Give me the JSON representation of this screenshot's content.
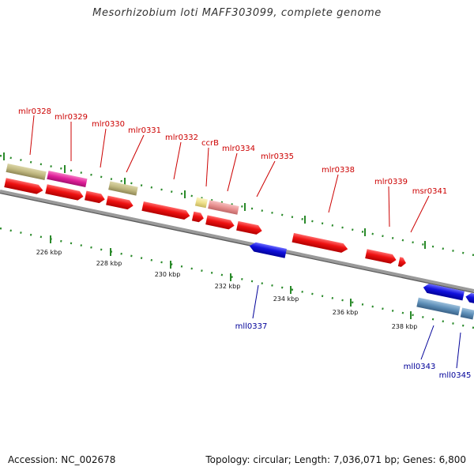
{
  "title": "Mesorhizobium loti MAFF303099, complete genome",
  "accession_label": "Accession: NC_002678",
  "topology_label": "Topology: circular; Length: 7,036,071 bp; Genes: 6,800",
  "colors": {
    "forward_gene": "#ee1111",
    "reverse_gene": "#1111dd",
    "forward_label": "#cc0000",
    "reverse_label": "#000099",
    "khaki": "#c0b880",
    "magenta": "#e0209a",
    "pink": "#e89090",
    "pale_yellow": "#eee08a",
    "steel_blue": "#5e8fb8",
    "backbone": "#8a8a8a",
    "ruler": "#2a8a2a"
  },
  "scale": {
    "ticks": [
      "226 kbp",
      "228 kbp",
      "230 kbp",
      "232 kbp",
      "234 kbp",
      "236 kbp",
      "238 kbp"
    ]
  },
  "labels": {
    "forward": [
      "mlr0328",
      "mlr0329",
      "mlr0330",
      "mlr0331",
      "mlr0332",
      "ccrB",
      "mlr0334",
      "mlr0335",
      "mlr0338",
      "mlr0339",
      "msr0341"
    ],
    "reverse": [
      "mll0337",
      "mll0343",
      "mll0345"
    ]
  }
}
